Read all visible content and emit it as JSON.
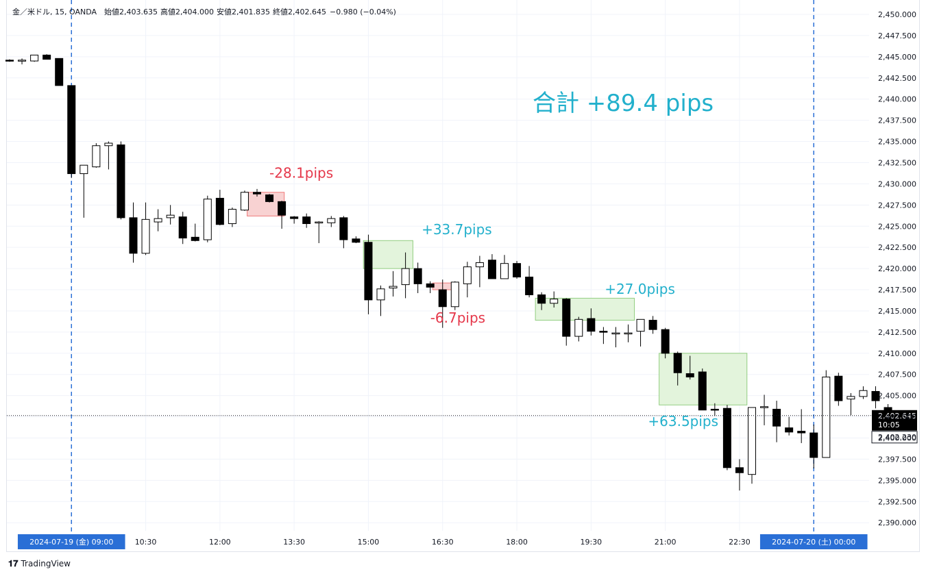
{
  "header": {
    "symbol": "金／米ドル, 15, OANDA",
    "open": "始値2,403.635",
    "high": "高値2,404.000",
    "low": "安値2,401.835",
    "close": "終値2,402.645",
    "change": "−0.980 (−0.04%)"
  },
  "brand": {
    "label": "TradingView",
    "logo_icon": "tradingview-logo-icon"
  },
  "colors": {
    "bull": "#ffffff",
    "bear": "#000000",
    "profit_fill": "#e3f4dc",
    "profit_border": "#92ce80",
    "loss_fill": "#f8d2d2",
    "loss_border": "#ef7a7a",
    "profit_text": "#22b0cc",
    "loss_text": "#e5374a",
    "session_line": "#2a6fd6",
    "grid": "#f0f3fa"
  },
  "chart_data": {
    "type": "candlestick",
    "title": "金／米ドル, 15, OANDA",
    "ylim": [
      2389.0,
      2451.0
    ],
    "yticks": [
      "2,450.000",
      "2,447.500",
      "2,445.000",
      "2,442.500",
      "2,440.000",
      "2,437.500",
      "2,435.000",
      "2,432.500",
      "2,430.000",
      "2,427.500",
      "2,425.000",
      "2,422.500",
      "2,420.000",
      "2,417.500",
      "2,415.000",
      "2,412.500",
      "2,410.000",
      "2,407.500",
      "2,405.000",
      "2,402.500",
      "2,400.000",
      "2,397.500",
      "2,395.000",
      "2,392.500",
      "2,390.000"
    ],
    "ytick_values": [
      2450.0,
      2447.5,
      2445.0,
      2442.5,
      2440.0,
      2437.5,
      2435.0,
      2432.5,
      2430.0,
      2427.5,
      2425.0,
      2422.5,
      2420.0,
      2417.5,
      2415.0,
      2412.5,
      2410.0,
      2407.5,
      2405.0,
      2402.5,
      2400.0,
      2397.5,
      2395.0,
      2392.5,
      2390.0
    ],
    "xticks": [
      {
        "label": "2024-07-19 (金)    09:00",
        "index": 5,
        "highlight": true
      },
      {
        "label": "10:30",
        "index": 11
      },
      {
        "label": "12:00",
        "index": 17
      },
      {
        "label": "13:30",
        "index": 23
      },
      {
        "label": "15:00",
        "index": 29
      },
      {
        "label": "16:30",
        "index": 35
      },
      {
        "label": "18:00",
        "index": 41
      },
      {
        "label": "19:30",
        "index": 47
      },
      {
        "label": "21:00",
        "index": 53
      },
      {
        "label": "22:30",
        "index": 59
      },
      {
        "label": "2024-07-20 (土)    00:00",
        "index": 65,
        "highlight": true
      }
    ],
    "session_lines": [
      5,
      65
    ],
    "candles": [
      {
        "o": 2444.6,
        "h": 2444.7,
        "l": 2444.4,
        "c": 2444.5
      },
      {
        "o": 2444.5,
        "h": 2444.8,
        "l": 2444.1,
        "c": 2444.6
      },
      {
        "o": 2444.5,
        "h": 2445.2,
        "l": 2444.4,
        "c": 2445.2
      },
      {
        "o": 2445.2,
        "h": 2445.3,
        "l": 2444.7,
        "c": 2444.7
      },
      {
        "o": 2444.8,
        "h": 2444.8,
        "l": 2441.8,
        "c": 2441.6
      },
      {
        "o": 2441.6,
        "h": 2441.6,
        "l": 2430.7,
        "c": 2431.2
      },
      {
        "o": 2431.2,
        "h": 2432.2,
        "l": 2426.0,
        "c": 2432.2
      },
      {
        "o": 2432.0,
        "h": 2434.8,
        "l": 2431.9,
        "c": 2434.5
      },
      {
        "o": 2434.5,
        "h": 2435.0,
        "l": 2431.7,
        "c": 2434.8
      },
      {
        "o": 2434.6,
        "h": 2435.0,
        "l": 2425.8,
        "c": 2426.0
      },
      {
        "o": 2426.0,
        "h": 2427.8,
        "l": 2420.7,
        "c": 2421.8
      },
      {
        "o": 2421.8,
        "h": 2427.8,
        "l": 2421.6,
        "c": 2425.8
      },
      {
        "o": 2425.5,
        "h": 2427.0,
        "l": 2424.4,
        "c": 2425.9
      },
      {
        "o": 2426.0,
        "h": 2427.5,
        "l": 2425.2,
        "c": 2426.3
      },
      {
        "o": 2426.1,
        "h": 2426.7,
        "l": 2422.9,
        "c": 2423.6
      },
      {
        "o": 2423.7,
        "h": 2425.3,
        "l": 2423.2,
        "c": 2423.3
      },
      {
        "o": 2423.4,
        "h": 2428.6,
        "l": 2423.1,
        "c": 2428.2
      },
      {
        "o": 2428.3,
        "h": 2429.3,
        "l": 2425.1,
        "c": 2425.2
      },
      {
        "o": 2425.3,
        "h": 2427.2,
        "l": 2424.9,
        "c": 2427.0
      },
      {
        "o": 2426.9,
        "h": 2429.2,
        "l": 2426.8,
        "c": 2429.0
      },
      {
        "o": 2429.0,
        "h": 2429.4,
        "l": 2428.5,
        "c": 2428.8
      },
      {
        "o": 2428.7,
        "h": 2428.8,
        "l": 2427.8,
        "c": 2427.9
      },
      {
        "o": 2427.9,
        "h": 2428.0,
        "l": 2424.7,
        "c": 2426.3
      },
      {
        "o": 2426.1,
        "h": 2426.2,
        "l": 2425.3,
        "c": 2425.9
      },
      {
        "o": 2426.1,
        "h": 2426.5,
        "l": 2424.8,
        "c": 2425.3
      },
      {
        "o": 2425.4,
        "h": 2425.6,
        "l": 2423.0,
        "c": 2425.5
      },
      {
        "o": 2425.4,
        "h": 2426.2,
        "l": 2424.9,
        "c": 2425.9
      },
      {
        "o": 2426.0,
        "h": 2426.2,
        "l": 2422.4,
        "c": 2423.4
      },
      {
        "o": 2423.5,
        "h": 2423.8,
        "l": 2423.0,
        "c": 2423.1
      },
      {
        "o": 2423.1,
        "h": 2424.0,
        "l": 2414.6,
        "c": 2416.3
      },
      {
        "o": 2416.3,
        "h": 2418.0,
        "l": 2414.4,
        "c": 2417.6
      },
      {
        "o": 2417.7,
        "h": 2419.7,
        "l": 2416.7,
        "c": 2417.9
      },
      {
        "o": 2418.1,
        "h": 2421.9,
        "l": 2416.5,
        "c": 2420.0
      },
      {
        "o": 2420.0,
        "h": 2420.7,
        "l": 2417.1,
        "c": 2418.2
      },
      {
        "o": 2418.2,
        "h": 2418.5,
        "l": 2417.1,
        "c": 2417.8
      },
      {
        "o": 2417.5,
        "h": 2418.7,
        "l": 2413.0,
        "c": 2415.5
      },
      {
        "o": 2415.5,
        "h": 2418.5,
        "l": 2415.1,
        "c": 2418.4
      },
      {
        "o": 2418.2,
        "h": 2420.8,
        "l": 2416.6,
        "c": 2420.2
      },
      {
        "o": 2420.2,
        "h": 2421.5,
        "l": 2417.8,
        "c": 2420.7
      },
      {
        "o": 2421.0,
        "h": 2421.7,
        "l": 2418.8,
        "c": 2418.8
      },
      {
        "o": 2418.8,
        "h": 2421.6,
        "l": 2418.8,
        "c": 2420.6
      },
      {
        "o": 2420.6,
        "h": 2420.9,
        "l": 2418.8,
        "c": 2419.0
      },
      {
        "o": 2419.0,
        "h": 2420.3,
        "l": 2416.6,
        "c": 2416.9
      },
      {
        "o": 2416.9,
        "h": 2417.2,
        "l": 2415.1,
        "c": 2415.9
      },
      {
        "o": 2415.9,
        "h": 2417.3,
        "l": 2415.4,
        "c": 2416.4
      },
      {
        "o": 2416.4,
        "h": 2416.5,
        "l": 2410.9,
        "c": 2412.0
      },
      {
        "o": 2412.0,
        "h": 2414.3,
        "l": 2411.4,
        "c": 2414.0
      },
      {
        "o": 2414.1,
        "h": 2415.3,
        "l": 2412.1,
        "c": 2412.6
      },
      {
        "o": 2412.6,
        "h": 2413.1,
        "l": 2411.1,
        "c": 2412.5
      },
      {
        "o": 2412.4,
        "h": 2413.1,
        "l": 2410.7,
        "c": 2412.4
      },
      {
        "o": 2412.3,
        "h": 2413.4,
        "l": 2411.3,
        "c": 2412.4
      },
      {
        "o": 2412.6,
        "h": 2414.0,
        "l": 2410.8,
        "c": 2414.0
      },
      {
        "o": 2413.9,
        "h": 2414.4,
        "l": 2412.3,
        "c": 2412.8
      },
      {
        "o": 2412.8,
        "h": 2413.0,
        "l": 2409.4,
        "c": 2410.0
      },
      {
        "o": 2410.0,
        "h": 2410.2,
        "l": 2406.2,
        "c": 2407.7
      },
      {
        "o": 2407.6,
        "h": 2409.7,
        "l": 2406.9,
        "c": 2407.2
      },
      {
        "o": 2407.8,
        "h": 2408.2,
        "l": 2403.3,
        "c": 2403.3
      },
      {
        "o": 2403.4,
        "h": 2404.1,
        "l": 2402.6,
        "c": 2403.3
      },
      {
        "o": 2403.5,
        "h": 2403.9,
        "l": 2396.2,
        "c": 2396.5
      },
      {
        "o": 2396.5,
        "h": 2397.5,
        "l": 2393.8,
        "c": 2395.9
      },
      {
        "o": 2395.7,
        "h": 2403.4,
        "l": 2394.6,
        "c": 2403.6
      },
      {
        "o": 2403.7,
        "h": 2405.1,
        "l": 2401.5,
        "c": 2403.7
      },
      {
        "o": 2403.4,
        "h": 2404.4,
        "l": 2399.5,
        "c": 2401.4
      },
      {
        "o": 2401.2,
        "h": 2402.5,
        "l": 2400.3,
        "c": 2400.7
      },
      {
        "o": 2400.8,
        "h": 2403.4,
        "l": 2399.4,
        "c": 2400.6
      },
      {
        "o": 2400.6,
        "h": 2401.6,
        "l": 2396.4,
        "c": 2397.7
      },
      {
        "o": 2397.7,
        "h": 2408.0,
        "l": 2397.7,
        "c": 2407.2
      },
      {
        "o": 2407.3,
        "h": 2407.7,
        "l": 2403.8,
        "c": 2404.4
      },
      {
        "o": 2404.6,
        "h": 2405.3,
        "l": 2402.7,
        "c": 2404.9
      },
      {
        "o": 2404.9,
        "h": 2406.1,
        "l": 2404.6,
        "c": 2405.6
      },
      {
        "o": 2405.5,
        "h": 2406.1,
        "l": 2403.5,
        "c": 2404.4
      },
      {
        "o": 2403.6,
        "h": 2404.0,
        "l": 2401.8,
        "c": 2402.6
      }
    ],
    "trades": [
      {
        "label": "-28.1pips",
        "result": "loss",
        "x0": 19.2,
        "x1": 22.2,
        "y0": 2426.2,
        "y1": 2429.0,
        "label_price": 2431.3,
        "label_x": 21.0
      },
      {
        "label": "+33.7pips",
        "result": "profit",
        "x0": 28.6,
        "x1": 32.6,
        "y0": 2420.0,
        "y1": 2423.3,
        "label_price": 2424.6,
        "label_x": 33.3
      },
      {
        "label": "-6.7pips",
        "result": "loss",
        "x0": 34.2,
        "x1": 36.3,
        "y0": 2417.5,
        "y1": 2418.3,
        "label_price": 2414.2,
        "label_x": 34.0
      },
      {
        "label": "+27.0pips",
        "result": "profit",
        "x0": 42.5,
        "x1": 50.5,
        "y0": 2413.9,
        "y1": 2416.5,
        "label_price": 2417.6,
        "label_x": 48.1
      },
      {
        "label": "+63.5pips",
        "result": "profit",
        "x0": 52.5,
        "x1": 59.6,
        "y0": 2403.9,
        "y1": 2410.0,
        "label_price": 2402.0,
        "label_x": 51.6
      }
    ],
    "total_label": "合計 +89.4 pips",
    "price_line": {
      "value": 2402.645,
      "label": "2,402.645",
      "countdown": "10:05"
    },
    "low_label": {
      "value": 2402.23,
      "label": "2,402.230"
    }
  }
}
